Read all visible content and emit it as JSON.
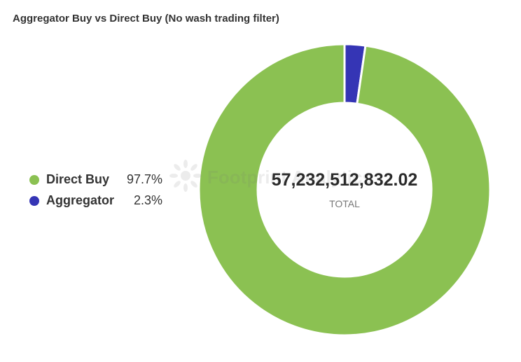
{
  "title": "Aggregator Buy vs Direct Buy (No wash trading filter)",
  "watermark": "Footprint Analytics",
  "center": {
    "total_value": "57,232,512,832.02",
    "total_label": "TOTAL"
  },
  "chart_data": {
    "type": "pie",
    "title": "Aggregator Buy vs Direct Buy (No wash trading filter)",
    "total": 57232512832.02,
    "slices": [
      {
        "label": "Aggregator",
        "percent": 2.3,
        "pct_label": "2.3%",
        "color": "#3535b5"
      },
      {
        "label": "Direct Buy",
        "percent": 97.7,
        "pct_label": "97.7%",
        "color": "#8bc152"
      }
    ],
    "legend": [
      {
        "label": "Direct Buy",
        "pct_label": "97.7%",
        "color": "#8bc152"
      },
      {
        "label": "Aggregator",
        "pct_label": "2.3%",
        "color": "#3535b5"
      }
    ],
    "legend_position": "left"
  }
}
